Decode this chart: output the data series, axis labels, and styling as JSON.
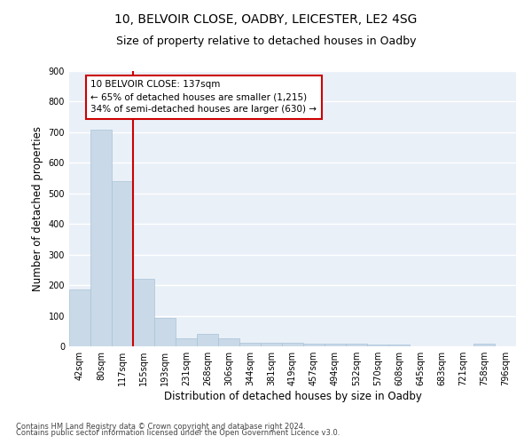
{
  "title1": "10, BELVOIR CLOSE, OADBY, LEICESTER, LE2 4SG",
  "title2": "Size of property relative to detached houses in Oadby",
  "xlabel": "Distribution of detached houses by size in Oadby",
  "ylabel": "Number of detached properties",
  "categories": [
    "42sqm",
    "80sqm",
    "117sqm",
    "155sqm",
    "193sqm",
    "231sqm",
    "268sqm",
    "306sqm",
    "344sqm",
    "381sqm",
    "419sqm",
    "457sqm",
    "494sqm",
    "532sqm",
    "570sqm",
    "608sqm",
    "645sqm",
    "683sqm",
    "721sqm",
    "758sqm",
    "796sqm"
  ],
  "values": [
    185,
    707,
    540,
    221,
    92,
    27,
    40,
    25,
    12,
    11,
    12,
    10,
    10,
    8,
    7,
    5,
    0,
    0,
    0,
    8,
    0
  ],
  "bar_color": "#c9d9e8",
  "bar_edge_color": "#a8c4d8",
  "vline_x": 2.5,
  "vline_color": "#cc0000",
  "annotation_box_text": "10 BELVOIR CLOSE: 137sqm\n← 65% of detached houses are smaller (1,215)\n34% of semi-detached houses are larger (630) →",
  "box_edge_color": "#cc0000",
  "ylim": [
    0,
    900
  ],
  "yticks": [
    0,
    100,
    200,
    300,
    400,
    500,
    600,
    700,
    800,
    900
  ],
  "background_color": "#eaf0f8",
  "grid_color": "#ffffff",
  "footer1": "Contains HM Land Registry data © Crown copyright and database right 2024.",
  "footer2": "Contains public sector information licensed under the Open Government Licence v3.0.",
  "title1_fontsize": 10,
  "title2_fontsize": 9,
  "xlabel_fontsize": 8.5,
  "ylabel_fontsize": 8.5,
  "tick_fontsize": 7,
  "annot_fontsize": 7.5,
  "footer_fontsize": 6
}
